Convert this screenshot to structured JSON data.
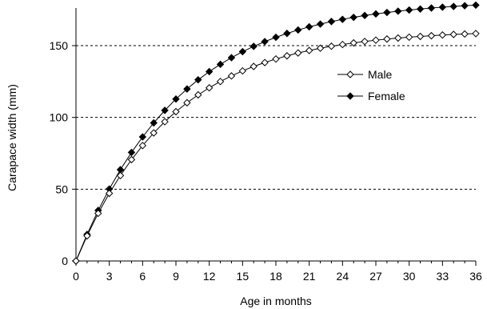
{
  "chart_data": {
    "type": "line",
    "title": "",
    "xlabel": "Age in months",
    "ylabel": "Carapace width (mm)",
    "xlim": [
      0,
      36
    ],
    "ylim": [
      0,
      175
    ],
    "xticks": [
      0,
      3,
      6,
      9,
      12,
      15,
      18,
      21,
      24,
      27,
      30,
      33,
      36
    ],
    "yticks": [
      0,
      50,
      100,
      150
    ],
    "grid": "horizontal dashed at 50, 100, 150",
    "legend_position": "right, inside plot",
    "x": [
      0,
      1,
      2,
      3,
      4,
      5,
      6,
      7,
      8,
      9,
      10,
      11,
      12,
      13,
      14,
      15,
      16,
      17,
      18,
      19,
      20,
      21,
      22,
      23,
      24,
      25,
      26,
      27,
      28,
      29,
      30,
      31,
      32,
      33,
      34,
      35,
      36
    ],
    "series": [
      {
        "name": "Male",
        "marker": "open-diamond",
        "color": "#000000",
        "values": [
          0,
          17.5,
          33.2,
          47.1,
          59.5,
          70.6,
          80.4,
          89.2,
          97.0,
          104.0,
          110.2,
          115.7,
          120.6,
          125.0,
          128.9,
          132.4,
          135.5,
          138.2,
          140.7,
          142.9,
          144.9,
          146.6,
          148.2,
          149.6,
          150.8,
          151.9,
          152.9,
          153.8,
          154.6,
          155.3,
          155.9,
          156.4,
          156.9,
          157.4,
          157.8,
          158.1,
          158.4
        ]
      },
      {
        "name": "Female",
        "marker": "filled-diamond",
        "color": "#000000",
        "values": [
          0,
          18.5,
          35.2,
          50.1,
          63.6,
          75.6,
          86.4,
          96.2,
          104.9,
          112.8,
          119.8,
          126.2,
          131.9,
          137.0,
          141.6,
          145.8,
          149.5,
          152.8,
          155.8,
          158.5,
          160.9,
          163.1,
          165.0,
          166.8,
          168.3,
          169.7,
          171.0,
          172.1,
          173.1,
          174.0,
          174.8,
          175.5,
          176.2,
          176.8,
          177.3,
          177.8,
          178.2
        ]
      }
    ]
  }
}
